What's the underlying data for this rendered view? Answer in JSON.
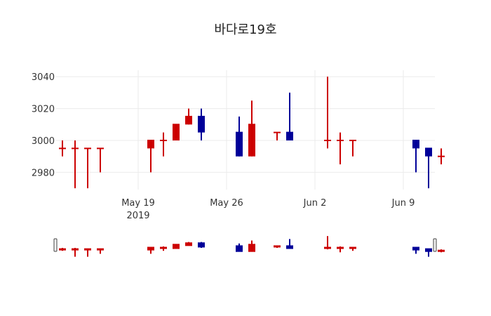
{
  "chart_data": {
    "type": "candlestick",
    "title": "바다로19호",
    "xlabel": "",
    "ylabel": "",
    "ylim": [
      2967,
      3043
    ],
    "y_ticks": [
      2980,
      3000,
      3020,
      3040
    ],
    "x_ticks": [
      {
        "label": "May 19",
        "sublabel": "2019",
        "day": 6
      },
      {
        "label": "May 26",
        "sublabel": "",
        "day": 13
      },
      {
        "label": "Jun 2",
        "sublabel": "",
        "day": 20
      },
      {
        "label": "Jun 9",
        "sublabel": "",
        "day": 27
      }
    ],
    "increasing_color": "#cc0000",
    "decreasing_color": "#000099",
    "grid": true,
    "rangeslider": true,
    "series": [
      {
        "date": "2019-05-13",
        "day": 0,
        "open": 2995,
        "high": 3000,
        "low": 2990,
        "close": 2995
      },
      {
        "date": "2019-05-14",
        "day": 1,
        "open": 2995,
        "high": 3000,
        "low": 2970,
        "close": 2995
      },
      {
        "date": "2019-05-15",
        "day": 2,
        "open": 2995,
        "high": 2995,
        "low": 2970,
        "close": 2995
      },
      {
        "date": "2019-05-16",
        "day": 3,
        "open": 2995,
        "high": 2995,
        "low": 2980,
        "close": 2995
      },
      {
        "date": "2019-05-20",
        "day": 7,
        "open": 2995,
        "high": 3000,
        "low": 2980,
        "close": 3000
      },
      {
        "date": "2019-05-21",
        "day": 8,
        "open": 3000,
        "high": 3005,
        "low": 2990,
        "close": 3000
      },
      {
        "date": "2019-05-22",
        "day": 9,
        "open": 3000,
        "high": 3010,
        "low": 3000,
        "close": 3010
      },
      {
        "date": "2019-05-23",
        "day": 10,
        "open": 3010,
        "high": 3020,
        "low": 3010,
        "close": 3015
      },
      {
        "date": "2019-05-24",
        "day": 11,
        "open": 3015,
        "high": 3020,
        "low": 3000,
        "close": 3005
      },
      {
        "date": "2019-05-27",
        "day": 14,
        "open": 3005,
        "high": 3015,
        "low": 2990,
        "close": 2990
      },
      {
        "date": "2019-05-28",
        "day": 15,
        "open": 2990,
        "high": 3025,
        "low": 2990,
        "close": 3010
      },
      {
        "date": "2019-05-30",
        "day": 17,
        "open": 3005,
        "high": 3005,
        "low": 3000,
        "close": 3005
      },
      {
        "date": "2019-05-31",
        "day": 18,
        "open": 3005,
        "high": 3030,
        "low": 3000,
        "close": 3000
      },
      {
        "date": "2019-06-03",
        "day": 21,
        "open": 3000,
        "high": 3040,
        "low": 2995,
        "close": 3000
      },
      {
        "date": "2019-06-04",
        "day": 22,
        "open": 3000,
        "high": 3005,
        "low": 2985,
        "close": 3000
      },
      {
        "date": "2019-06-05",
        "day": 23,
        "open": 3000,
        "high": 3000,
        "low": 2990,
        "close": 3000
      },
      {
        "date": "2019-06-10",
        "day": 28,
        "open": 3000,
        "high": 3000,
        "low": 2980,
        "close": 2995
      },
      {
        "date": "2019-06-11",
        "day": 29,
        "open": 2995,
        "high": 2995,
        "low": 2970,
        "close": 2990
      },
      {
        "date": "2019-06-12",
        "day": 30,
        "open": 2990,
        "high": 2995,
        "low": 2985,
        "close": 2990
      }
    ]
  }
}
